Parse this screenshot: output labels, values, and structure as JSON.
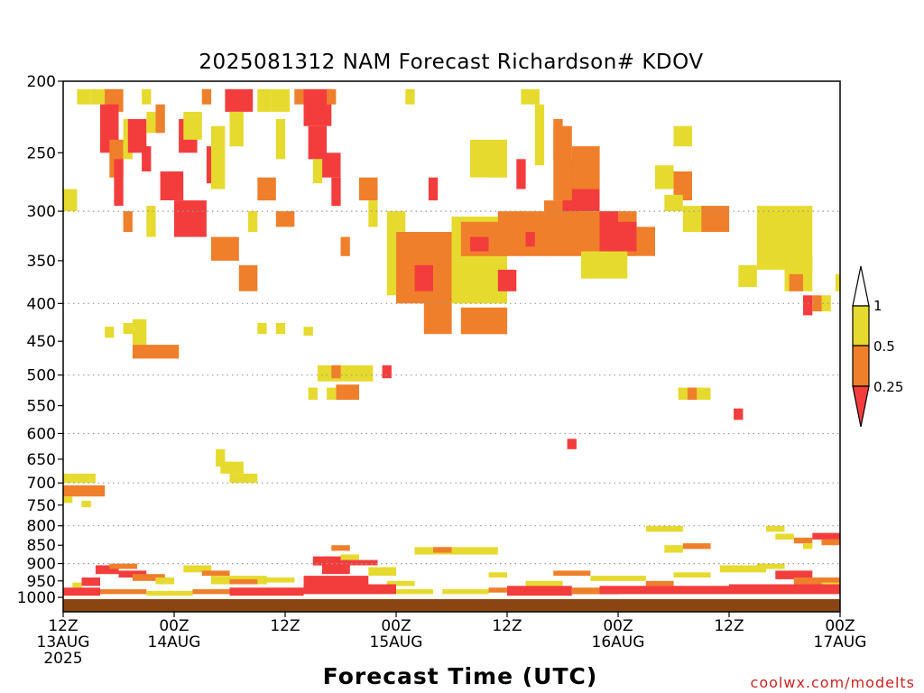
{
  "colors": {
    "c_0_025": "#f33d3d",
    "c_025_05": "#ef7f2b",
    "c_05_1": "#e6da2f",
    "ground": "#8b4513"
  },
  "chart_data": {
    "type": "heatmap",
    "title": "2025081312 NAM Forecast Richardson# KDOV",
    "xlabel": "Forecast Time (UTC)",
    "ylabel": "",
    "credit": "coolwx.com/modelts",
    "x_ticks": [
      {
        "hour": 0,
        "line1": "12Z",
        "line2": "13AUG",
        "line3": "2025"
      },
      {
        "hour": 12,
        "line1": "00Z",
        "line2": "14AUG",
        "line3": ""
      },
      {
        "hour": 24,
        "line1": "12Z",
        "line2": "",
        "line3": ""
      },
      {
        "hour": 36,
        "line1": "00Z",
        "line2": "15AUG",
        "line3": ""
      },
      {
        "hour": 48,
        "line1": "12Z",
        "line2": "",
        "line3": ""
      },
      {
        "hour": 60,
        "line1": "00Z",
        "line2": "16AUG",
        "line3": ""
      },
      {
        "hour": 72,
        "line1": "12Z",
        "line2": "",
        "line3": ""
      },
      {
        "hour": 84,
        "line1": "00Z",
        "line2": "17AUG",
        "line3": ""
      }
    ],
    "xlim": [
      0,
      84
    ],
    "y_axis": "pressure (log scale, reversed)",
    "ylim": [
      1000,
      200
    ],
    "y_ticks": [
      200,
      250,
      300,
      350,
      400,
      450,
      500,
      550,
      600,
      650,
      700,
      750,
      800,
      850,
      900,
      950,
      1000
    ],
    "dotted_grid_levels": [
      300,
      400,
      500,
      600,
      700,
      800,
      900
    ],
    "colorbar": {
      "labels": [
        "1",
        "0.5",
        "0.25"
      ],
      "bins": [
        {
          "range": "> 1",
          "color": "#ffffff"
        },
        {
          "range": "0.5 - 1",
          "color": "#e6da2f"
        },
        {
          "range": "0.25 - 0.5",
          "color": "#ef7f2b"
        },
        {
          "range": "< 0.25",
          "color": "#f33d3d"
        }
      ]
    },
    "cells": [
      {
        "t0": 0,
        "t1": 1.5,
        "p0": 280,
        "p1": 300,
        "c": "y"
      },
      {
        "t0": 1.5,
        "t1": 3,
        "p0": 205,
        "p1": 215,
        "c": "y"
      },
      {
        "t0": 3,
        "t1": 5,
        "p0": 205,
        "p1": 215,
        "c": "y"
      },
      {
        "t0": 4.5,
        "t1": 6.5,
        "p0": 205,
        "p1": 220,
        "c": "o"
      },
      {
        "t0": 4,
        "t1": 6,
        "p0": 215,
        "p1": 250,
        "c": "r"
      },
      {
        "t0": 5,
        "t1": 6.5,
        "p0": 240,
        "p1": 270,
        "c": "o"
      },
      {
        "t0": 5.5,
        "t1": 6.5,
        "p0": 255,
        "p1": 295,
        "c": "r"
      },
      {
        "t0": 6.5,
        "t1": 7.5,
        "p0": 225,
        "p1": 255,
        "c": "y"
      },
      {
        "t0": 7,
        "t1": 9,
        "p0": 225,
        "p1": 250,
        "c": "r"
      },
      {
        "t0": 8.5,
        "t1": 9.5,
        "p0": 245,
        "p1": 265,
        "c": "r"
      },
      {
        "t0": 9,
        "t1": 10,
        "p0": 220,
        "p1": 235,
        "c": "y"
      },
      {
        "t0": 10,
        "t1": 11,
        "p0": 215,
        "p1": 235,
        "c": "o"
      },
      {
        "t0": 8.5,
        "t1": 9.5,
        "p0": 205,
        "p1": 215,
        "c": "y"
      },
      {
        "t0": 6.5,
        "t1": 7.5,
        "p0": 300,
        "p1": 320,
        "c": "o"
      },
      {
        "t0": 9,
        "t1": 10,
        "p0": 295,
        "p1": 325,
        "c": "y"
      },
      {
        "t0": 10.5,
        "t1": 13,
        "p0": 265,
        "p1": 290,
        "c": "r"
      },
      {
        "t0": 12,
        "t1": 15.5,
        "p0": 290,
        "p1": 325,
        "c": "r"
      },
      {
        "t0": 12.5,
        "t1": 14.5,
        "p0": 225,
        "p1": 250,
        "c": "r"
      },
      {
        "t0": 13,
        "t1": 15,
        "p0": 220,
        "p1": 240,
        "c": "y"
      },
      {
        "t0": 15,
        "t1": 16,
        "p0": 205,
        "p1": 215,
        "c": "o"
      },
      {
        "t0": 15.5,
        "t1": 16.5,
        "p0": 245,
        "p1": 275,
        "c": "r"
      },
      {
        "t0": 16,
        "t1": 17.5,
        "p0": 230,
        "p1": 280,
        "c": "y"
      },
      {
        "t0": 17.5,
        "t1": 20.5,
        "p0": 205,
        "p1": 220,
        "c": "r"
      },
      {
        "t0": 18,
        "t1": 19.5,
        "p0": 220,
        "p1": 245,
        "c": "y"
      },
      {
        "t0": 21,
        "t1": 22.5,
        "p0": 205,
        "p1": 220,
        "c": "y"
      },
      {
        "t0": 21,
        "t1": 23,
        "p0": 270,
        "p1": 290,
        "c": "o"
      },
      {
        "t0": 20,
        "t1": 21,
        "p0": 300,
        "p1": 320,
        "c": "y"
      },
      {
        "t0": 16,
        "t1": 19,
        "p0": 325,
        "p1": 350,
        "c": "o"
      },
      {
        "t0": 19,
        "t1": 21,
        "p0": 355,
        "p1": 385,
        "c": "o"
      },
      {
        "t0": 22.5,
        "t1": 24.5,
        "p0": 205,
        "p1": 220,
        "c": "y"
      },
      {
        "t0": 23,
        "t1": 24,
        "p0": 225,
        "p1": 255,
        "c": "y"
      },
      {
        "t0": 25,
        "t1": 26,
        "p0": 205,
        "p1": 215,
        "c": "o"
      },
      {
        "t0": 26,
        "t1": 29,
        "p0": 205,
        "p1": 230,
        "c": "r"
      },
      {
        "t0": 26.5,
        "t1": 28.5,
        "p0": 230,
        "p1": 255,
        "c": "r"
      },
      {
        "t0": 28,
        "t1": 30,
        "p0": 250,
        "p1": 270,
        "c": "r"
      },
      {
        "t0": 27,
        "t1": 28,
        "p0": 255,
        "p1": 275,
        "c": "y"
      },
      {
        "t0": 23,
        "t1": 25,
        "p0": 300,
        "p1": 315,
        "c": "o"
      },
      {
        "t0": 28.5,
        "t1": 29.5,
        "p0": 205,
        "p1": 215,
        "c": "o"
      },
      {
        "t0": 29,
        "t1": 30,
        "p0": 270,
        "p1": 295,
        "c": "r"
      },
      {
        "t0": 32,
        "t1": 34,
        "p0": 270,
        "p1": 290,
        "c": "o"
      },
      {
        "t0": 30,
        "t1": 31,
        "p0": 325,
        "p1": 345,
        "c": "o"
      },
      {
        "t0": 33,
        "t1": 34,
        "p0": 290,
        "p1": 315,
        "c": "y"
      },
      {
        "t0": 35,
        "t1": 37,
        "p0": 300,
        "p1": 390,
        "c": "y"
      },
      {
        "t0": 36,
        "t1": 42,
        "p0": 320,
        "p1": 400,
        "c": "o"
      },
      {
        "t0": 38,
        "t1": 40,
        "p0": 355,
        "p1": 385,
        "c": "r"
      },
      {
        "t0": 39,
        "t1": 42,
        "p0": 395,
        "p1": 440,
        "c": "o"
      },
      {
        "t0": 42,
        "t1": 48,
        "p0": 305,
        "p1": 350,
        "c": "y"
      },
      {
        "t0": 43,
        "t1": 48,
        "p0": 310,
        "p1": 345,
        "c": "o"
      },
      {
        "t0": 44,
        "t1": 46,
        "p0": 325,
        "p1": 340,
        "c": "r"
      },
      {
        "t0": 42,
        "t1": 48,
        "p0": 350,
        "p1": 400,
        "c": "y"
      },
      {
        "t0": 47,
        "t1": 49,
        "p0": 360,
        "p1": 385,
        "c": "r"
      },
      {
        "t0": 43,
        "t1": 48,
        "p0": 405,
        "p1": 440,
        "c": "o"
      },
      {
        "t0": 47,
        "t1": 52,
        "p0": 300,
        "p1": 345,
        "c": "o"
      },
      {
        "t0": 50,
        "t1": 51,
        "p0": 320,
        "p1": 335,
        "c": "r"
      },
      {
        "t0": 52,
        "t1": 56,
        "p0": 290,
        "p1": 345,
        "c": "o"
      },
      {
        "t0": 54,
        "t1": 58,
        "p0": 255,
        "p1": 300,
        "c": "r"
      },
      {
        "t0": 56,
        "t1": 62,
        "p0": 300,
        "p1": 345,
        "c": "o"
      },
      {
        "t0": 58,
        "t1": 60,
        "p0": 300,
        "p1": 340,
        "c": "r"
      },
      {
        "t0": 59,
        "t1": 62,
        "p0": 310,
        "p1": 340,
        "c": "r"
      },
      {
        "t0": 62,
        "t1": 64,
        "p0": 315,
        "p1": 345,
        "c": "o"
      },
      {
        "t0": 56,
        "t1": 61,
        "p0": 340,
        "p1": 370,
        "c": "y"
      },
      {
        "t0": 53,
        "t1": 55,
        "p0": 230,
        "p1": 290,
        "c": "o"
      },
      {
        "t0": 55,
        "t1": 58,
        "p0": 245,
        "p1": 280,
        "c": "o"
      },
      {
        "t0": 44,
        "t1": 48,
        "p0": 240,
        "p1": 270,
        "c": "y"
      },
      {
        "t0": 46,
        "t1": 48,
        "p0": 255,
        "p1": 270,
        "c": "y"
      },
      {
        "t0": 49,
        "t1": 50,
        "p0": 255,
        "p1": 280,
        "c": "r"
      },
      {
        "t0": 39.5,
        "t1": 40.5,
        "p0": 270,
        "p1": 290,
        "c": "r"
      },
      {
        "t0": 37,
        "t1": 38,
        "p0": 205,
        "p1": 215,
        "c": "y"
      },
      {
        "t0": 49.5,
        "t1": 51.5,
        "p0": 205,
        "p1": 215,
        "c": "y"
      },
      {
        "t0": 51,
        "t1": 52,
        "p0": 215,
        "p1": 260,
        "c": "y"
      },
      {
        "t0": 53,
        "t1": 54,
        "p0": 225,
        "p1": 255,
        "c": "o"
      },
      {
        "t0": 66,
        "t1": 68,
        "p0": 265,
        "p1": 290,
        "c": "o"
      },
      {
        "t0": 64,
        "t1": 66,
        "p0": 260,
        "p1": 280,
        "c": "y"
      },
      {
        "t0": 65,
        "t1": 67,
        "p0": 285,
        "p1": 300,
        "c": "y"
      },
      {
        "t0": 67,
        "t1": 71,
        "p0": 295,
        "p1": 320,
        "c": "y"
      },
      {
        "t0": 69,
        "t1": 72,
        "p0": 295,
        "p1": 320,
        "c": "o"
      },
      {
        "t0": 66,
        "t1": 68,
        "p0": 230,
        "p1": 245,
        "c": "y"
      },
      {
        "t0": 75,
        "t1": 81,
        "p0": 295,
        "p1": 360,
        "c": "y"
      },
      {
        "t0": 78,
        "t1": 81,
        "p0": 345,
        "p1": 385,
        "c": "y"
      },
      {
        "t0": 78.5,
        "t1": 80,
        "p0": 365,
        "p1": 385,
        "c": "o"
      },
      {
        "t0": 73,
        "t1": 75,
        "p0": 355,
        "p1": 380,
        "c": "y"
      },
      {
        "t0": 80,
        "t1": 81,
        "p0": 390,
        "p1": 415,
        "c": "r"
      },
      {
        "t0": 81,
        "t1": 82,
        "p0": 390,
        "p1": 410,
        "c": "o"
      },
      {
        "t0": 82,
        "t1": 83,
        "p0": 390,
        "p1": 410,
        "c": "y"
      },
      {
        "t0": 83.5,
        "t1": 84,
        "p0": 365,
        "p1": 385,
        "c": "y"
      },
      {
        "t0": 4.5,
        "t1": 5.5,
        "p0": 430,
        "p1": 445,
        "c": "y"
      },
      {
        "t0": 6.5,
        "t1": 7.5,
        "p0": 425,
        "p1": 440,
        "c": "y"
      },
      {
        "t0": 7.5,
        "t1": 9,
        "p0": 420,
        "p1": 455,
        "c": "y"
      },
      {
        "t0": 7.5,
        "t1": 12.5,
        "p0": 455,
        "p1": 475,
        "c": "o"
      },
      {
        "t0": 21,
        "t1": 22,
        "p0": 425,
        "p1": 440,
        "c": "y"
      },
      {
        "t0": 23,
        "t1": 24,
        "p0": 425,
        "p1": 440,
        "c": "y"
      },
      {
        "t0": 26,
        "t1": 27,
        "p0": 430,
        "p1": 442,
        "c": "y"
      },
      {
        "t0": 27.5,
        "t1": 33.5,
        "p0": 485,
        "p1": 510,
        "c": "y"
      },
      {
        "t0": 29,
        "t1": 30,
        "p0": 485,
        "p1": 505,
        "c": "o"
      },
      {
        "t0": 34.5,
        "t1": 35.5,
        "p0": 485,
        "p1": 505,
        "c": "r"
      },
      {
        "t0": 29.5,
        "t1": 32,
        "p0": 515,
        "p1": 540,
        "c": "o"
      },
      {
        "t0": 26.5,
        "t1": 27.5,
        "p0": 520,
        "p1": 540,
        "c": "y"
      },
      {
        "t0": 28.5,
        "t1": 29.5,
        "p0": 520,
        "p1": 540,
        "c": "y"
      },
      {
        "t0": 66.5,
        "t1": 70,
        "p0": 520,
        "p1": 540,
        "c": "y"
      },
      {
        "t0": 67.5,
        "t1": 68.5,
        "p0": 520,
        "p1": 540,
        "c": "o"
      },
      {
        "t0": 72.5,
        "t1": 73.5,
        "p0": 555,
        "p1": 575,
        "c": "r"
      },
      {
        "t0": 54.5,
        "t1": 55.5,
        "p0": 610,
        "p1": 630,
        "c": "r"
      },
      {
        "t0": 16.5,
        "t1": 17.5,
        "p0": 630,
        "p1": 665,
        "c": "y"
      },
      {
        "t0": 17,
        "t1": 19.5,
        "p0": 655,
        "p1": 680,
        "c": "y"
      },
      {
        "t0": 18,
        "t1": 21,
        "p0": 680,
        "p1": 700,
        "c": "y"
      },
      {
        "t0": 0,
        "t1": 3.5,
        "p0": 680,
        "p1": 700,
        "c": "y"
      },
      {
        "t0": 0,
        "t1": 4.5,
        "p0": 705,
        "p1": 730,
        "c": "o"
      },
      {
        "t0": 0,
        "t1": 1,
        "p0": 730,
        "p1": 745,
        "c": "y"
      },
      {
        "t0": 2,
        "t1": 3,
        "p0": 740,
        "p1": 755,
        "c": "y"
      },
      {
        "t0": 63,
        "t1": 67,
        "p0": 800,
        "p1": 815,
        "c": "y"
      },
      {
        "t0": 76,
        "t1": 78,
        "p0": 800,
        "p1": 815,
        "c": "y"
      },
      {
        "t0": 65,
        "t1": 67,
        "p0": 850,
        "p1": 870,
        "c": "y"
      },
      {
        "t0": 67,
        "t1": 70,
        "p0": 845,
        "p1": 860,
        "c": "o"
      },
      {
        "t0": 77,
        "t1": 79,
        "p0": 820,
        "p1": 835,
        "c": "y"
      },
      {
        "t0": 79,
        "t1": 81,
        "p0": 830,
        "p1": 845,
        "c": "o"
      },
      {
        "t0": 81,
        "t1": 84,
        "p0": 818,
        "p1": 835,
        "c": "r"
      },
      {
        "t0": 82,
        "t1": 84,
        "p0": 835,
        "p1": 850,
        "c": "o"
      },
      {
        "t0": 80,
        "t1": 81,
        "p0": 845,
        "p1": 860,
        "c": "y"
      },
      {
        "t0": 38,
        "t1": 47,
        "p0": 855,
        "p1": 875,
        "c": "y"
      },
      {
        "t0": 40,
        "t1": 42,
        "p0": 855,
        "p1": 870,
        "c": "o"
      },
      {
        "t0": 29,
        "t1": 31,
        "p0": 850,
        "p1": 865,
        "c": "o"
      },
      {
        "t0": 30,
        "t1": 32,
        "p0": 875,
        "p1": 890,
        "c": "y"
      },
      {
        "t0": 1,
        "t1": 2,
        "p0": 955,
        "p1": 970,
        "c": "y"
      },
      {
        "t0": 2,
        "t1": 4,
        "p0": 940,
        "p1": 965,
        "c": "r"
      },
      {
        "t0": 3.5,
        "t1": 6,
        "p0": 905,
        "p1": 930,
        "c": "r"
      },
      {
        "t0": 5,
        "t1": 8,
        "p0": 900,
        "p1": 915,
        "c": "o"
      },
      {
        "t0": 6,
        "t1": 9,
        "p0": 920,
        "p1": 940,
        "c": "r"
      },
      {
        "t0": 7.5,
        "t1": 11,
        "p0": 930,
        "p1": 950,
        "c": "o"
      },
      {
        "t0": 10,
        "t1": 12,
        "p0": 940,
        "p1": 960,
        "c": "y"
      },
      {
        "t0": 13,
        "t1": 16,
        "p0": 905,
        "p1": 925,
        "c": "y"
      },
      {
        "t0": 15,
        "t1": 18,
        "p0": 920,
        "p1": 935,
        "c": "o"
      },
      {
        "t0": 16,
        "t1": 22,
        "p0": 935,
        "p1": 960,
        "c": "y"
      },
      {
        "t0": 18,
        "t1": 21,
        "p0": 945,
        "p1": 960,
        "c": "o"
      },
      {
        "t0": 22,
        "t1": 25,
        "p0": 940,
        "p1": 955,
        "c": "y"
      },
      {
        "t0": 27,
        "t1": 30,
        "p0": 880,
        "p1": 905,
        "c": "r"
      },
      {
        "t0": 28,
        "t1": 31,
        "p0": 905,
        "p1": 930,
        "c": "r"
      },
      {
        "t0": 30,
        "t1": 34,
        "p0": 890,
        "p1": 905,
        "c": "r"
      },
      {
        "t0": 26,
        "t1": 33,
        "p0": 935,
        "p1": 965,
        "c": "r"
      },
      {
        "t0": 33,
        "t1": 36,
        "p0": 910,
        "p1": 935,
        "c": "y"
      },
      {
        "t0": 35,
        "t1": 38,
        "p0": 950,
        "p1": 965,
        "c": "y"
      },
      {
        "t0": 46,
        "t1": 48,
        "p0": 925,
        "p1": 940,
        "c": "y"
      },
      {
        "t0": 50,
        "t1": 54,
        "p0": 950,
        "p1": 965,
        "c": "y"
      },
      {
        "t0": 53,
        "t1": 57,
        "p0": 920,
        "p1": 935,
        "c": "o"
      },
      {
        "t0": 57,
        "t1": 63,
        "p0": 935,
        "p1": 950,
        "c": "y"
      },
      {
        "t0": 63,
        "t1": 66,
        "p0": 950,
        "p1": 965,
        "c": "o"
      },
      {
        "t0": 66,
        "t1": 70,
        "p0": 925,
        "p1": 940,
        "c": "y"
      },
      {
        "t0": 71,
        "t1": 76,
        "p0": 905,
        "p1": 925,
        "c": "y"
      },
      {
        "t0": 75,
        "t1": 78,
        "p0": 900,
        "p1": 915,
        "c": "y"
      },
      {
        "t0": 77,
        "t1": 81,
        "p0": 920,
        "p1": 945,
        "c": "r"
      },
      {
        "t0": 79,
        "t1": 84,
        "p0": 940,
        "p1": 960,
        "c": "o"
      },
      {
        "t0": 82,
        "t1": 84,
        "p0": 955,
        "p1": 970,
        "c": "y"
      },
      {
        "t0": 0,
        "t1": 4,
        "p0": 970,
        "p1": 995,
        "c": "r"
      },
      {
        "t0": 4,
        "t1": 9,
        "p0": 975,
        "p1": 990,
        "c": "o"
      },
      {
        "t0": 9,
        "t1": 14,
        "p0": 980,
        "p1": 995,
        "c": "y"
      },
      {
        "t0": 14,
        "t1": 18,
        "p0": 975,
        "p1": 990,
        "c": "o"
      },
      {
        "t0": 18,
        "t1": 26,
        "p0": 970,
        "p1": 995,
        "c": "r"
      },
      {
        "t0": 26,
        "t1": 36,
        "p0": 960,
        "p1": 990,
        "c": "r"
      },
      {
        "t0": 36,
        "t1": 40,
        "p0": 975,
        "p1": 990,
        "c": "y"
      },
      {
        "t0": 41,
        "t1": 46,
        "p0": 975,
        "p1": 990,
        "c": "y"
      },
      {
        "t0": 46,
        "t1": 50,
        "p0": 970,
        "p1": 985,
        "c": "o"
      },
      {
        "t0": 48,
        "t1": 55,
        "p0": 965,
        "p1": 995,
        "c": "r"
      },
      {
        "t0": 55,
        "t1": 60,
        "p0": 970,
        "p1": 990,
        "c": "o"
      },
      {
        "t0": 58,
        "t1": 72,
        "p0": 965,
        "p1": 990,
        "c": "r"
      },
      {
        "t0": 72,
        "t1": 84,
        "p0": 960,
        "p1": 990,
        "c": "r"
      }
    ]
  }
}
